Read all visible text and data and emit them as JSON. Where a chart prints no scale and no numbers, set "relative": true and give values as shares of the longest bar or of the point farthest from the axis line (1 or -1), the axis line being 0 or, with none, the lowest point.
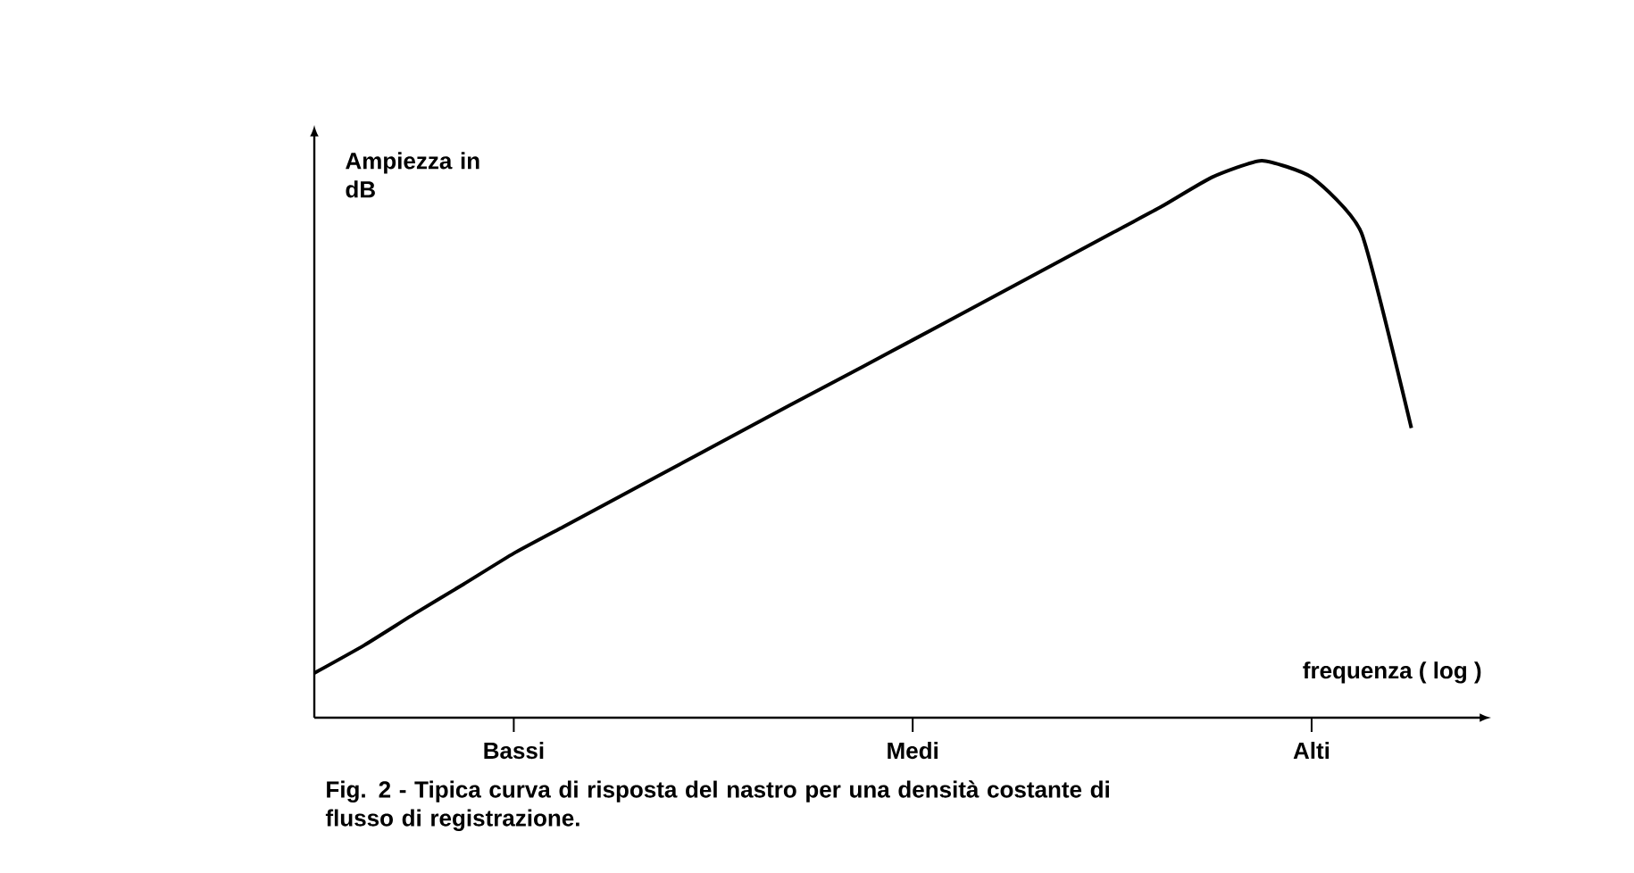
{
  "chart_data": {
    "type": "line",
    "relative": true,
    "xlabel": "frequenza ( log )",
    "ylabel": "Ampiezza in dB",
    "categories": [
      null,
      null,
      null,
      null,
      "Bassi",
      null,
      null,
      null,
      null,
      null,
      null,
      null,
      "Medi",
      null,
      null,
      null,
      null,
      null,
      null,
      null,
      "Alti",
      null,
      null
    ],
    "values": [
      0.08,
      0.13,
      0.186,
      0.24,
      0.295,
      0.343,
      0.391,
      0.439,
      0.487,
      0.535,
      0.583,
      0.63,
      0.678,
      0.726,
      0.774,
      0.822,
      0.87,
      0.918,
      0.97,
      1,
      0.97,
      0.87,
      0.52
    ],
    "color": "#000000",
    "annotations": [
      "Fig. 2 - Tipica curva di risposta del nastro per una densità costante di flusso di registrazione."
    ]
  }
}
